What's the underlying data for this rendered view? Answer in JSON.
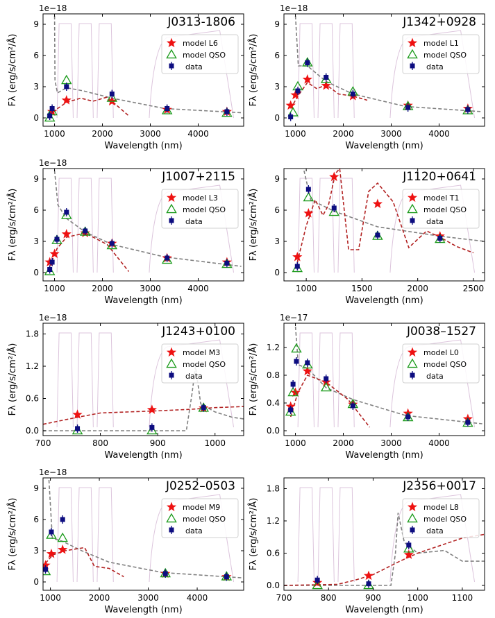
{
  "legend_labels": {
    "qso": "model QSO",
    "data": "data"
  },
  "colors": {
    "model_marker": "#ee1111",
    "model_line": "#b22222",
    "qso_marker": "#1a9a1a",
    "qso_line": "#808080",
    "data_marker": "#0d0d80",
    "filter_curve": "#dcc4dc"
  },
  "chart_data": [
    {
      "type": "scatter",
      "title": "J0313-1806",
      "xlabel": "Wavelength (nm)",
      "ylabel": "Fλ (erg/s/cm²/Å)",
      "offset_label": "1e−18",
      "model_label": "model L6",
      "xlim": [
        760,
        4950
      ],
      "ylim": [
        -0.8,
        10
      ],
      "xticks": [
        1000,
        2000,
        3000,
        4000
      ],
      "yticks": [
        0,
        3,
        6,
        9
      ],
      "data": [
        [
          900,
          0.2
        ],
        [
          950,
          0.9
        ],
        [
          1250,
          3.0
        ],
        [
          2200,
          2.3
        ],
        [
          3350,
          0.9
        ],
        [
          4600,
          0.6
        ]
      ],
      "qso": [
        [
          900,
          0.0
        ],
        [
          950,
          0.6
        ],
        [
          1250,
          3.6
        ],
        [
          2200,
          1.9
        ],
        [
          3350,
          0.7
        ],
        [
          4600,
          0.45
        ]
      ],
      "model": [
        [
          950,
          0.6
        ],
        [
          1250,
          1.7
        ],
        [
          2200,
          1.6
        ],
        [
          3350,
          0.8
        ],
        [
          4600,
          0.6
        ]
      ],
      "qso_curve": [
        [
          1000,
          9.8
        ],
        [
          1010,
          3.6
        ],
        [
          1060,
          2.4
        ],
        [
          1250,
          2.9
        ],
        [
          1600,
          2.6
        ],
        [
          2200,
          1.9
        ],
        [
          3300,
          0.9
        ],
        [
          4900,
          0.5
        ]
      ],
      "model_curve": [
        [
          900,
          0.1
        ],
        [
          1000,
          0.7
        ],
        [
          1250,
          1.5
        ],
        [
          1550,
          1.9
        ],
        [
          1800,
          1.6
        ],
        [
          2100,
          2.0
        ],
        [
          2550,
          0.2
        ]
      ]
    },
    {
      "type": "scatter",
      "title": "J1342+0928",
      "xlabel": "Wavelength (nm)",
      "ylabel": "Fλ (erg/s/cm²/Å)",
      "offset_label": "1e−18",
      "model_label": "model L1",
      "xlim": [
        760,
        4950
      ],
      "ylim": [
        -0.8,
        10
      ],
      "xticks": [
        1000,
        2000,
        3000,
        4000
      ],
      "yticks": [
        0,
        3,
        6,
        9
      ],
      "data": [
        [
          900,
          0.1
        ],
        [
          1050,
          2.6
        ],
        [
          1250,
          5.3
        ],
        [
          1640,
          3.9
        ],
        [
          2200,
          2.3
        ],
        [
          3350,
          1.0
        ],
        [
          4600,
          0.8
        ]
      ],
      "qso": [
        [
          950,
          0.5
        ],
        [
          1050,
          3.0
        ],
        [
          1250,
          5.3
        ],
        [
          1640,
          3.7
        ],
        [
          2200,
          2.5
        ],
        [
          3350,
          1.1
        ],
        [
          4600,
          0.7
        ]
      ],
      "model": [
        [
          900,
          1.2
        ],
        [
          1000,
          2.2
        ],
        [
          1250,
          3.7
        ],
        [
          1640,
          3.1
        ],
        [
          2200,
          2.1
        ],
        [
          3350,
          1.2
        ],
        [
          4600,
          0.9
        ]
      ],
      "qso_curve": [
        [
          1000,
          9.8
        ],
        [
          1060,
          5.0
        ],
        [
          1250,
          5.0
        ],
        [
          1640,
          3.5
        ],
        [
          2200,
          2.3
        ],
        [
          3300,
          1.1
        ],
        [
          4900,
          0.6
        ]
      ],
      "model_curve": [
        [
          900,
          0.9
        ],
        [
          1050,
          2.1
        ],
        [
          1250,
          3.4
        ],
        [
          1450,
          2.8
        ],
        [
          1640,
          3.2
        ],
        [
          1900,
          2.3
        ],
        [
          2200,
          2.1
        ],
        [
          2500,
          1.7
        ]
      ]
    },
    {
      "type": "scatter",
      "title": "J1007+2115",
      "xlabel": "Wavelength (nm)",
      "ylabel": "Fλ (erg/s/cm²/Å)",
      "offset_label": "1e−18",
      "model_label": "model L3",
      "xlim": [
        760,
        4950
      ],
      "ylim": [
        -0.8,
        10
      ],
      "xticks": [
        1000,
        2000,
        3000,
        4000
      ],
      "yticks": [
        0,
        3,
        6,
        9
      ],
      "data": [
        [
          900,
          0.3
        ],
        [
          950,
          1.0
        ],
        [
          1050,
          3.2
        ],
        [
          1250,
          5.8
        ],
        [
          1640,
          4.0
        ],
        [
          2200,
          2.8
        ],
        [
          3350,
          1.4
        ],
        [
          4600,
          0.9
        ]
      ],
      "qso": [
        [
          900,
          0.1
        ],
        [
          1050,
          3.1
        ],
        [
          1250,
          5.5
        ],
        [
          1640,
          3.9
        ],
        [
          2200,
          2.6
        ],
        [
          3350,
          1.2
        ],
        [
          4600,
          0.8
        ]
      ],
      "model": [
        [
          900,
          1.0
        ],
        [
          1000,
          1.8
        ],
        [
          1250,
          3.7
        ],
        [
          1640,
          3.8
        ],
        [
          2200,
          2.8
        ],
        [
          3350,
          1.4
        ],
        [
          4600,
          1.0
        ]
      ],
      "qso_curve": [
        [
          1000,
          9.8
        ],
        [
          1070,
          6.5
        ],
        [
          1250,
          5.2
        ],
        [
          1640,
          3.9
        ],
        [
          2200,
          2.7
        ],
        [
          3300,
          1.5
        ],
        [
          4900,
          0.6
        ]
      ],
      "model_curve": [
        [
          900,
          0.6
        ],
        [
          1050,
          2.3
        ],
        [
          1250,
          3.4
        ],
        [
          1640,
          3.8
        ],
        [
          2100,
          2.7
        ],
        [
          2550,
          0.1
        ]
      ]
    },
    {
      "type": "scatter",
      "title": "J1120+0641",
      "xlabel": "Wavelength (nm)",
      "ylabel": "Fλ (erg/s/cm²/Å)",
      "offset_label": "",
      "model_label": "model T1",
      "xlim": [
        800,
        2600
      ],
      "ylim": [
        -0.8,
        10
      ],
      "xticks": [
        1000,
        1500,
        2000,
        2500
      ],
      "yticks": [
        0,
        3,
        6,
        9
      ],
      "data": [
        [
          920,
          0.6
        ],
        [
          1020,
          8.0
        ],
        [
          1250,
          6.2
        ],
        [
          1640,
          3.6
        ],
        [
          2200,
          3.3
        ]
      ],
      "qso": [
        [
          920,
          0.4
        ],
        [
          1020,
          7.2
        ],
        [
          1250,
          5.8
        ],
        [
          1640,
          3.5
        ],
        [
          2200,
          3.2
        ]
      ],
      "model": [
        [
          920,
          1.5
        ],
        [
          1020,
          5.7
        ],
        [
          1250,
          9.2
        ],
        [
          1640,
          6.6
        ],
        [
          2200,
          3.5
        ]
      ],
      "qso_curve": [
        [
          980,
          9.8
        ],
        [
          1040,
          7.0
        ],
        [
          1250,
          5.9
        ],
        [
          1640,
          4.4
        ],
        [
          2200,
          3.5
        ],
        [
          2600,
          3.0
        ]
      ],
      "model_curve": [
        [
          920,
          1.0
        ],
        [
          1000,
          4.5
        ],
        [
          1080,
          7.0
        ],
        [
          1150,
          5.5
        ],
        [
          1200,
          6.5
        ],
        [
          1260,
          9.5
        ],
        [
          1300,
          10.0
        ],
        [
          1380,
          2.2
        ],
        [
          1470,
          2.2
        ],
        [
          1560,
          7.8
        ],
        [
          1640,
          8.6
        ],
        [
          1780,
          6.8
        ],
        [
          1920,
          2.4
        ],
        [
          2080,
          4.0
        ],
        [
          2200,
          3.4
        ],
        [
          2350,
          2.5
        ],
        [
          2500,
          1.9
        ]
      ]
    },
    {
      "type": "scatter",
      "title": "J1243+0100",
      "xlabel": "Wavelength (nm)",
      "ylabel": "Fλ (erg/s/cm²/Å)",
      "offset_label": "1e−18",
      "model_label": "model M3",
      "xlim": [
        700,
        1050
      ],
      "ylim": [
        -0.09,
        2.0
      ],
      "xticks": [
        700,
        800,
        900,
        1000
      ],
      "yticks": [
        0.0,
        0.6,
        1.2,
        1.8
      ],
      "data": [
        [
          760,
          0.04
        ],
        [
          890,
          0.06
        ],
        [
          980,
          0.43
        ]
      ],
      "qso": [
        [
          760,
          0.0
        ],
        [
          890,
          0.0
        ],
        [
          980,
          0.42
        ]
      ],
      "model": [
        [
          760,
          0.3
        ],
        [
          890,
          0.39
        ],
        [
          980,
          0.42
        ]
      ],
      "qso_curve": [
        [
          700,
          0.0
        ],
        [
          950,
          0.0
        ],
        [
          960,
          0.7
        ],
        [
          966,
          1.2
        ],
        [
          975,
          0.5
        ],
        [
          1000,
          0.35
        ],
        [
          1030,
          0.25
        ],
        [
          1050,
          0.22
        ]
      ],
      "model_curve": [
        [
          700,
          0.12
        ],
        [
          760,
          0.25
        ],
        [
          800,
          0.33
        ],
        [
          900,
          0.37
        ],
        [
          960,
          0.4
        ],
        [
          1000,
          0.43
        ],
        [
          1050,
          0.45
        ]
      ]
    },
    {
      "type": "scatter",
      "title": "J0038–1527",
      "xlabel": "Wavelength (nm)",
      "ylabel": "Fλ (erg/s/cm²/Å)",
      "offset_label": "1e−17",
      "model_label": "model L0",
      "xlim": [
        760,
        4950
      ],
      "ylim": [
        -0.07,
        1.55
      ],
      "xticks": [
        1000,
        2000,
        3000,
        4000
      ],
      "yticks": [
        0.0,
        0.4,
        0.8,
        1.2
      ],
      "data": [
        [
          900,
          0.3
        ],
        [
          950,
          0.67
        ],
        [
          1020,
          1.0
        ],
        [
          1250,
          0.98
        ],
        [
          1640,
          0.75
        ],
        [
          2200,
          0.36
        ],
        [
          3350,
          0.2
        ],
        [
          4600,
          0.12
        ]
      ],
      "qso": [
        [
          900,
          0.27
        ],
        [
          950,
          0.55
        ],
        [
          1020,
          1.18
        ],
        [
          1250,
          0.95
        ],
        [
          1640,
          0.62
        ],
        [
          2200,
          0.38
        ],
        [
          3350,
          0.19
        ],
        [
          4600,
          0.11
        ]
      ],
      "model": [
        [
          900,
          0.35
        ],
        [
          1000,
          0.55
        ],
        [
          1250,
          0.86
        ],
        [
          1640,
          0.7
        ],
        [
          2200,
          0.38
        ],
        [
          3350,
          0.25
        ],
        [
          4600,
          0.17
        ]
      ],
      "qso_curve": [
        [
          1000,
          1.5
        ],
        [
          1060,
          0.95
        ],
        [
          1250,
          0.9
        ],
        [
          1640,
          0.62
        ],
        [
          2200,
          0.45
        ],
        [
          3300,
          0.22
        ],
        [
          4900,
          0.1
        ]
      ],
      "model_curve": [
        [
          900,
          0.2
        ],
        [
          1050,
          0.55
        ],
        [
          1250,
          0.8
        ],
        [
          1640,
          0.7
        ],
        [
          2100,
          0.45
        ],
        [
          2550,
          0.05
        ]
      ]
    },
    {
      "type": "scatter",
      "title": "J0252–0503",
      "xlabel": "Wavelength (nm)",
      "ylabel": "Fλ (erg/s/cm²/Å)",
      "offset_label": "1e−18",
      "model_label": "model M9",
      "xlim": [
        850,
        4950
      ],
      "ylim": [
        -0.8,
        10
      ],
      "xticks": [
        1000,
        2000,
        3000,
        4000
      ],
      "yticks": [
        0,
        3,
        6,
        9
      ],
      "data": [
        [
          900,
          1.2
        ],
        [
          1020,
          4.8
        ],
        [
          1250,
          6.0
        ],
        [
          3350,
          0.8
        ],
        [
          4600,
          0.5
        ]
      ],
      "qso": [
        [
          900,
          1.0
        ],
        [
          1020,
          4.5
        ],
        [
          1250,
          4.2
        ],
        [
          3350,
          0.8
        ],
        [
          4600,
          0.5
        ]
      ],
      "model": [
        [
          900,
          1.6
        ],
        [
          1020,
          2.7
        ],
        [
          1250,
          3.1
        ],
        [
          3350,
          0.8
        ],
        [
          4600,
          0.5
        ]
      ],
      "qso_curve": [
        [
          970,
          9.8
        ],
        [
          1040,
          4.2
        ],
        [
          1250,
          3.9
        ],
        [
          1640,
          3.0
        ],
        [
          2200,
          1.9
        ],
        [
          3300,
          0.9
        ],
        [
          4900,
          0.4
        ]
      ],
      "model_curve": [
        [
          900,
          1.8
        ],
        [
          1050,
          2.6
        ],
        [
          1300,
          3.0
        ],
        [
          1700,
          3.3
        ],
        [
          1900,
          1.5
        ],
        [
          2200,
          1.3
        ],
        [
          2500,
          0.5
        ]
      ]
    },
    {
      "type": "scatter",
      "title": "J2356+0017",
      "xlabel": "Wavelength (nm)",
      "ylabel": "Fλ (erg/s/cm²/Å)",
      "offset_label": "",
      "model_label": "model L8",
      "xlim": [
        700,
        1150
      ],
      "ylim": [
        -0.09,
        2.0
      ],
      "xticks": [
        700,
        800,
        900,
        1000,
        1100
      ],
      "yticks": [
        0.0,
        0.6,
        1.2,
        1.8
      ],
      "data": [
        [
          775,
          0.1
        ],
        [
          890,
          0.03
        ],
        [
          980,
          0.75
        ]
      ],
      "qso": [
        [
          775,
          0.0
        ],
        [
          890,
          0.0
        ],
        [
          980,
          0.68
        ]
      ],
      "model": [
        [
          775,
          0.05
        ],
        [
          890,
          0.18
        ],
        [
          980,
          0.57
        ]
      ],
      "qso_curve": [
        [
          700,
          0.0
        ],
        [
          940,
          0.0
        ],
        [
          950,
          0.6
        ],
        [
          956,
          1.35
        ],
        [
          970,
          0.8
        ],
        [
          1000,
          0.6
        ],
        [
          1060,
          0.65
        ],
        [
          1100,
          0.45
        ],
        [
          1150,
          0.45
        ]
      ],
      "model_curve": [
        [
          700,
          0.0
        ],
        [
          820,
          0.02
        ],
        [
          860,
          0.1
        ],
        [
          900,
          0.2
        ],
        [
          960,
          0.45
        ],
        [
          1000,
          0.6
        ],
        [
          1100,
          0.88
        ],
        [
          1150,
          0.95
        ]
      ]
    }
  ]
}
